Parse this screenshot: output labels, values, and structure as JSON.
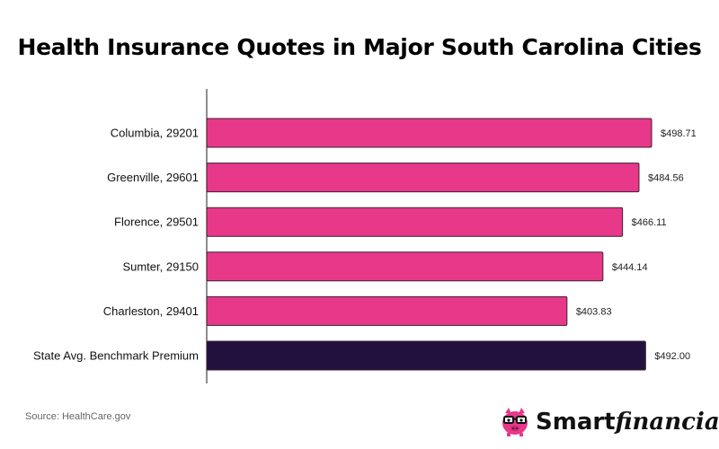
{
  "chart_data": {
    "type": "bar",
    "orientation": "horizontal",
    "title": "Health Insurance Quotes in Major South Carolina Cities",
    "categories": [
      "Columbia, 29201",
      "Greenville, 29601",
      "Florence, 29501",
      "Sumter, 29150",
      "Charleston, 29401",
      "State Avg. Benchmark Premium"
    ],
    "values": [
      498.71,
      484.56,
      466.11,
      444.14,
      403.83,
      492.0
    ],
    "value_labels": [
      "$498.71",
      "$484.56",
      "$466.11",
      "$444.14",
      "$403.83",
      "$492.00"
    ],
    "bar_colors": [
      "#e8388a",
      "#e8388a",
      "#e8388a",
      "#e8388a",
      "#e8388a",
      "#22103f"
    ],
    "xlim": [
      0,
      498.71
    ],
    "grid": false,
    "xlabel": "",
    "ylabel": ""
  },
  "source": "Source: HealthCare.gov",
  "brand": {
    "name_bold": "Smart",
    "name_italic": "financial",
    "logo_icon": "piggy-bank-with-glasses-icon",
    "accent_color": "#e8388a"
  }
}
